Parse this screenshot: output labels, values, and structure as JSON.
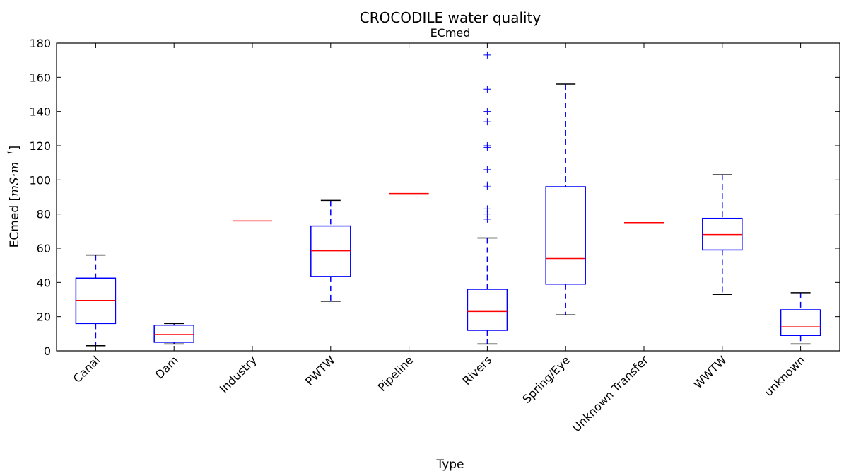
{
  "chart_data": {
    "type": "box",
    "title": "CROCODILE water quality",
    "subtitle": "ECmed",
    "xlabel": "Type",
    "ylabel": {
      "text": "ECmed [",
      "unit": "mS·m",
      "exponent": "−1",
      "close": "]"
    },
    "ylim": [
      0,
      180
    ],
    "yticks": [
      0,
      20,
      40,
      60,
      80,
      100,
      120,
      140,
      160,
      180
    ],
    "grid": false,
    "colors": {
      "box": "#0000ff",
      "median": "#ff0000",
      "cap": "#000000",
      "flier": "#0000ff"
    },
    "categories": [
      "Canal",
      "Dam",
      "Industry",
      "PWTW",
      "Pipeline",
      "Rivers",
      "Spring/Eye",
      "Unknown Transfer",
      "WWTW",
      "unknown"
    ],
    "boxes": [
      {
        "category": "Canal",
        "whisker_low": 3,
        "q1": 16,
        "median": 29.5,
        "q3": 42.5,
        "whisker_high": 56,
        "fliers": []
      },
      {
        "category": "Dam",
        "whisker_low": 4,
        "q1": 5,
        "median": 9.5,
        "q3": 15,
        "whisker_high": 16,
        "fliers": []
      },
      {
        "category": "Industry",
        "whisker_low": 76,
        "q1": 76,
        "median": 76,
        "q3": 76,
        "whisker_high": 76,
        "fliers": []
      },
      {
        "category": "PWTW",
        "whisker_low": 29,
        "q1": 43.5,
        "median": 58.5,
        "q3": 73,
        "whisker_high": 88,
        "fliers": []
      },
      {
        "category": "Pipeline",
        "whisker_low": 92,
        "q1": 92,
        "median": 92,
        "q3": 92,
        "whisker_high": 92,
        "fliers": []
      },
      {
        "category": "Rivers",
        "whisker_low": 4,
        "q1": 12,
        "median": 23,
        "q3": 36,
        "whisker_high": 66,
        "fliers": [
          173,
          153,
          140,
          134,
          120,
          119,
          106,
          97,
          96,
          83,
          80,
          77
        ]
      },
      {
        "category": "Spring/Eye",
        "whisker_low": 21,
        "q1": 39,
        "median": 54,
        "q3": 96,
        "whisker_high": 156,
        "fliers": []
      },
      {
        "category": "Unknown Transfer",
        "whisker_low": 75,
        "q1": 75,
        "median": 75,
        "q3": 75,
        "whisker_high": 75,
        "fliers": []
      },
      {
        "category": "WWTW",
        "whisker_low": 33,
        "q1": 59,
        "median": 68,
        "q3": 77.5,
        "whisker_high": 103,
        "fliers": []
      },
      {
        "category": "unknown",
        "whisker_low": 4,
        "q1": 9,
        "median": 14,
        "q3": 24,
        "whisker_high": 34,
        "fliers": []
      }
    ]
  }
}
